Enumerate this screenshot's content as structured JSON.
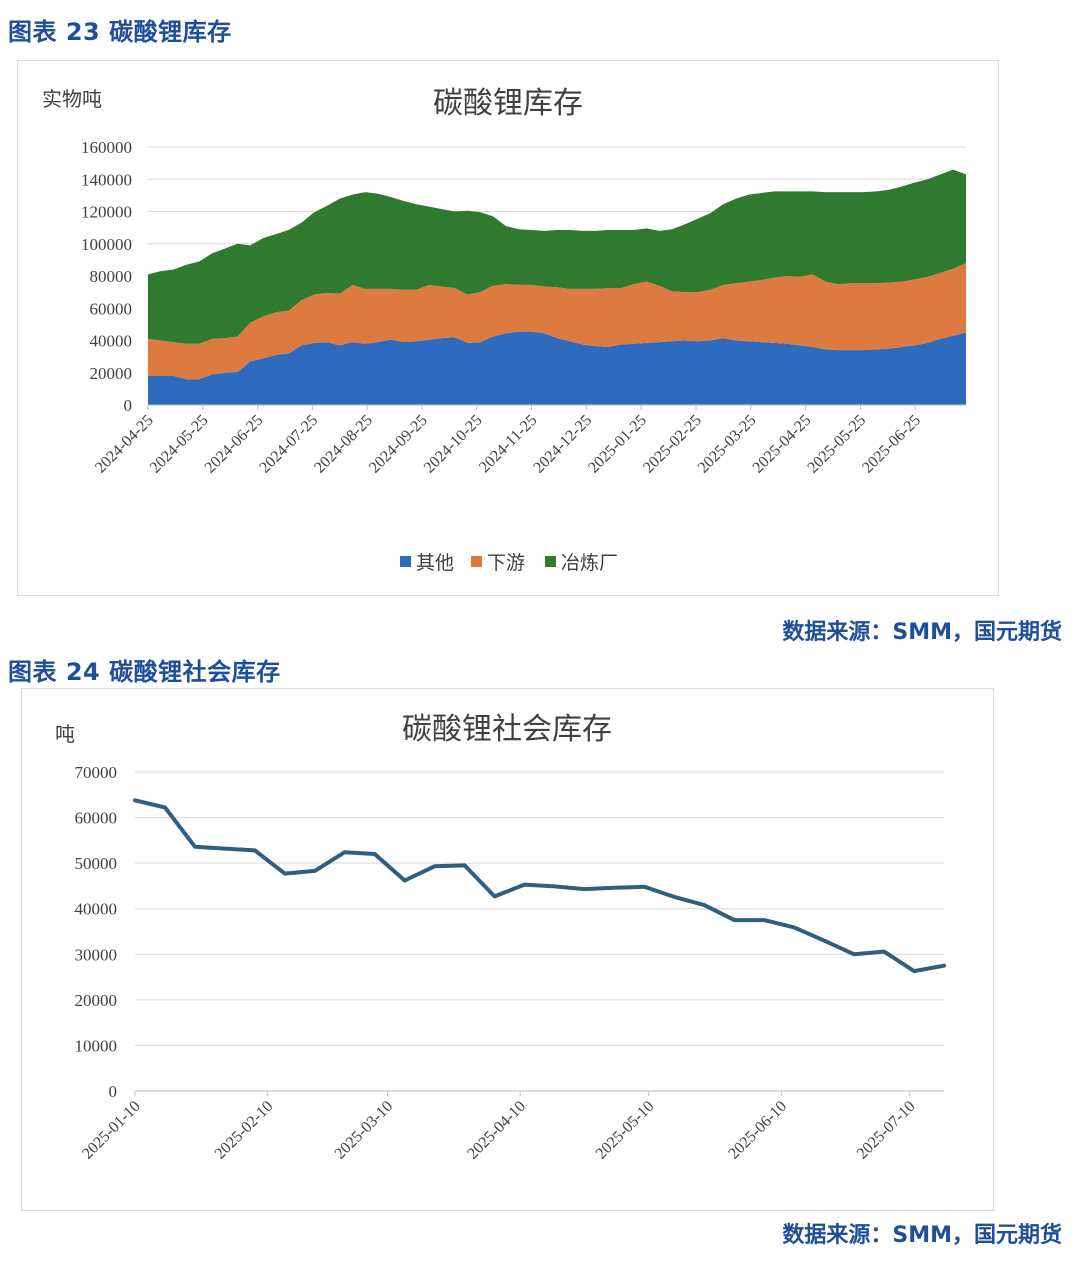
{
  "figure1": {
    "caption": "图表 23 碳酸锂库存",
    "source": "数据来源：SMM，国元期货",
    "chart_data": {
      "type": "area",
      "stacked": true,
      "title": "碳酸锂库存",
      "ylabel": "实物吨",
      "ylim": [
        0,
        160000
      ],
      "yticks": [
        0,
        20000,
        40000,
        60000,
        80000,
        100000,
        120000,
        140000,
        160000
      ],
      "xtick_labels": [
        "2024-04-25",
        "2024-05-25",
        "2024-06-25",
        "2024-07-25",
        "2024-08-25",
        "2024-09-25",
        "2024-10-25",
        "2024-11-25",
        "2024-12-25",
        "2025-01-25",
        "2025-02-25",
        "2025-03-25",
        "2025-04-25",
        "2025-05-25",
        "2025-06-25"
      ],
      "legend_position": "bottom",
      "series": [
        {
          "name": "其他",
          "color": "#2e6bbf",
          "values": [
            18000,
            18000,
            18000,
            16000,
            16000,
            19000,
            20000,
            20500,
            27000,
            29000,
            31000,
            32000,
            37000,
            38500,
            39000,
            37000,
            39000,
            38000,
            39000,
            40500,
            39000,
            39500,
            40500,
            41500,
            42000,
            38500,
            39000,
            42500,
            44500,
            45500,
            45500,
            44500,
            41500,
            39500,
            37500,
            36500,
            36000,
            37500,
            38000,
            38500,
            39000,
            39500,
            40000,
            39500,
            40000,
            41500,
            40000,
            39500,
            39000,
            38500,
            38000,
            37000,
            36000,
            34500,
            34000,
            34000,
            34000,
            34500,
            35000,
            36000,
            37000,
            38500,
            41000,
            43000,
            45000
          ]
        },
        {
          "name": "下游",
          "color": "#dd7a3f",
          "values": [
            23000,
            22000,
            21000,
            22000,
            22000,
            22000,
            21500,
            22000,
            24000,
            26000,
            26500,
            26500,
            28000,
            30000,
            30500,
            32000,
            35500,
            34000,
            33000,
            31500,
            32500,
            32000,
            34000,
            32000,
            30500,
            30000,
            31000,
            31500,
            30500,
            29000,
            29000,
            29000,
            31500,
            32500,
            34500,
            35500,
            36500,
            35000,
            37000,
            38000,
            35000,
            31000,
            30000,
            30500,
            31500,
            33000,
            35500,
            37000,
            38500,
            40500,
            42000,
            42500,
            45000,
            42000,
            41000,
            41500,
            41500,
            41000,
            41000,
            40500,
            41000,
            41000,
            41000,
            41500,
            43000
          ]
        },
        {
          "name": "冶炼厂",
          "color": "#2f7a2e",
          "values": [
            40000,
            43000,
            45000,
            49000,
            51000,
            53000,
            55500,
            57500,
            48000,
            48500,
            48500,
            50000,
            48000,
            51000,
            54000,
            59000,
            56000,
            60000,
            59000,
            57000,
            55000,
            53000,
            48500,
            48000,
            47500,
            52000,
            49500,
            43000,
            36000,
            34500,
            34000,
            34500,
            35500,
            36500,
            36000,
            36000,
            36000,
            36000,
            33500,
            33000,
            34000,
            38500,
            42000,
            45500,
            47500,
            50000,
            52500,
            54000,
            54000,
            53500,
            52500,
            53000,
            51500,
            55500,
            57000,
            56500,
            56500,
            57000,
            57500,
            59000,
            60000,
            60500,
            61000,
            61500,
            55000
          ]
        }
      ]
    }
  },
  "figure2": {
    "caption": "图表 24 碳酸锂社会库存",
    "source": "数据来源：SMM，国元期货",
    "chart_data": {
      "type": "line",
      "title": "碳酸锂社会库存",
      "ylabel": "吨",
      "ylim": [
        0,
        70000
      ],
      "yticks": [
        0,
        10000,
        20000,
        30000,
        40000,
        50000,
        60000,
        70000
      ],
      "xtick_labels": [
        "2025-01-10",
        "2025-02-10",
        "2025-03-10",
        "2025-04-10",
        "2025-05-10",
        "2025-06-10",
        "2025-07-10"
      ],
      "series": [
        {
          "color": "#2f5f80",
          "x": [
            "2025-01-10",
            "2025-01-17",
            "2025-01-24",
            "2025-01-31",
            "2025-02-07",
            "2025-02-14",
            "2025-02-21",
            "2025-02-28",
            "2025-03-07",
            "2025-03-14",
            "2025-03-21",
            "2025-03-28",
            "2025-04-04",
            "2025-04-11",
            "2025-04-18",
            "2025-04-25",
            "2025-05-02",
            "2025-05-09",
            "2025-05-16",
            "2025-05-23",
            "2025-05-30",
            "2025-06-06",
            "2025-06-13",
            "2025-06-20",
            "2025-06-27",
            "2025-07-04",
            "2025-07-11",
            "2025-07-18"
          ],
          "values": [
            63800,
            62200,
            53600,
            53200,
            52800,
            47700,
            48300,
            52400,
            52000,
            46200,
            49300,
            49500,
            42700,
            45300,
            44900,
            44300,
            44600,
            44800,
            42600,
            40800,
            37500,
            37500,
            35900,
            33000,
            30000,
            30600,
            26300,
            27500
          ]
        }
      ]
    }
  }
}
